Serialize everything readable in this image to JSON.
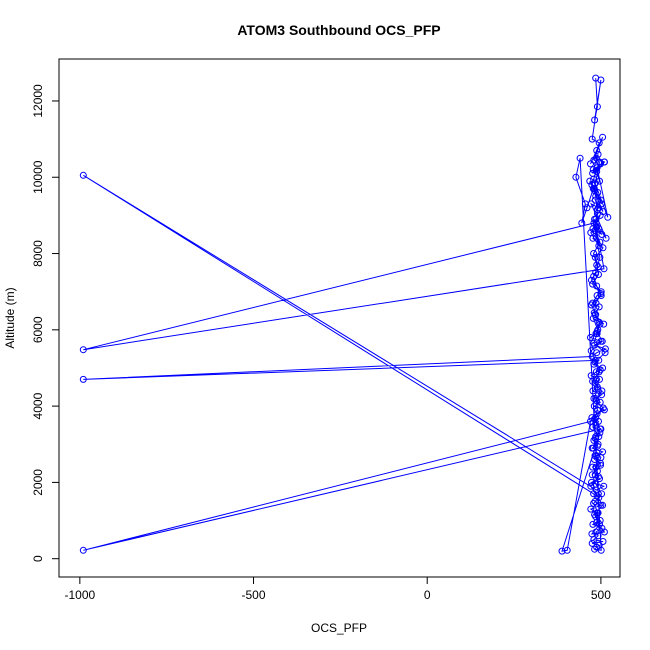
{
  "chart_data": {
    "type": "scatter",
    "title": "ATOM3 Southbound OCS_PFP",
    "xlabel": "OCS_PFP",
    "ylabel": "Altitude (m)",
    "xlim": [
      -1060,
      555
    ],
    "ylim": [
      -480,
      13100
    ],
    "xticks": [
      -1000,
      -500,
      0,
      500
    ],
    "yticks": [
      0,
      2000,
      4000,
      6000,
      8000,
      10000,
      12000
    ],
    "color": "#0000ff",
    "grid": false,
    "legend": "none",
    "series": [
      {
        "x": [
          485,
          490,
          482,
          500,
          475,
          495,
          488,
          470,
          505,
          480,
          492,
          478,
          510,
          487,
          476,
          499,
          483,
          520,
          489,
          474,
          502,
          481,
          496,
          479,
          491,
          468,
          506,
          484,
          493,
          472,
          515,
          486,
          498,
          477,
          503,
          488,
          471,
          494,
          482,
          509,
          -990,
          480,
          497,
          485,
          473,
          501,
          489,
          476,
          495,
          483,
          508,
          478,
          491,
          486,
          470,
          500,
          482,
          513,
          488,
          475,
          -990,
          494,
          480,
          505,
          487,
          472,
          496,
          484,
          490,
          477,
          502,
          485,
          498,
          481,
          510,
          489,
          474,
          493,
          486,
          500,
          -990,
          470,
          403,
          388,
          497,
          485,
          480,
          492,
          475,
          505,
          488,
          482,
          499,
          476,
          490,
          484,
          496,
          473,
          508,
          487,
          -990,
          479,
          494,
          483,
          500,
          471,
          489,
          485,
          498,
          477,
          503,
          486,
          492,
          480,
          506,
          475,
          495,
          488,
          482,
          501,
          440,
          428,
          455,
          445,
          460,
          478,
          485,
          490,
          483,
          497,
          479,
          488,
          493,
          476,
          500,
          486,
          481,
          495,
          489,
          504,
          472,
          484,
          498,
          487,
          491,
          480,
          507,
          485,
          477,
          494,
          490,
          483,
          499,
          475,
          486,
          502,
          479,
          492,
          488,
          510,
          474,
          496,
          482,
          505,
          489,
          471,
          493,
          486,
          500,
          478,
          484,
          498,
          481,
          490,
          487,
          503,
          476,
          495,
          483,
          512,
          480,
          489,
          497,
          485,
          473,
          501,
          488,
          479,
          492,
          484,
          506,
          477,
          494,
          486,
          490,
          500,
          482,
          496,
          488,
          510
        ],
        "y": [
          12600,
          11850,
          11500,
          12550,
          11000,
          10900,
          10700,
          10350,
          11050,
          10450,
          10600,
          10200,
          10400,
          10500,
          10100,
          10350,
          9850,
          8950,
          10250,
          9800,
          9300,
          9700,
          10400,
          9950,
          9600,
          9900,
          9100,
          9400,
          9200,
          9300,
          8400,
          8800,
          9000,
          8650,
          8500,
          8700,
          8550,
          8200,
          8900,
          7600,
          5480,
          8800,
          7900,
          7500,
          7300,
          7000,
          6900,
          6700,
          6600,
          6400,
          6150,
          6300,
          6000,
          5900,
          5800,
          5700,
          5600,
          5500,
          5400,
          5300,
          4700,
          5200,
          5100,
          5000,
          4900,
          4800,
          4700,
          4600,
          4500,
          4400,
          4300,
          4200,
          4100,
          4000,
          3900,
          3800,
          3700,
          3600,
          3500,
          3400,
          220,
          3600,
          220,
          200,
          3300,
          3200,
          3100,
          3000,
          2900,
          2800,
          2700,
          2600,
          2500,
          2400,
          2300,
          2200,
          2100,
          2000,
          1900,
          1800,
          10050,
          1700,
          1600,
          1500,
          1400,
          1300,
          1200,
          1100,
          1000,
          900,
          800,
          700,
          600,
          500,
          450,
          400,
          350,
          300,
          250,
          220,
          10500,
          10000,
          9300,
          8800,
          9200,
          9700,
          9500,
          9050,
          8600,
          8300,
          8000,
          7700,
          7450,
          7200,
          6950,
          6700,
          6450,
          6200,
          5950,
          5700,
          5450,
          5200,
          4950,
          4700,
          4450,
          4200,
          3950,
          3700,
          3450,
          3200,
          2950,
          2700,
          2450,
          2200,
          1950,
          1700,
          1450,
          1200,
          950,
          700,
          650,
          900,
          1150,
          1400,
          1650,
          1900,
          2150,
          2400,
          2650,
          2900,
          3150,
          3400,
          3650,
          3900,
          4150,
          4400,
          4650,
          4900,
          5150,
          5400,
          5650,
          5900,
          6150,
          6400,
          6650,
          6900,
          7150,
          7400,
          7650,
          7900,
          8150,
          8400,
          8650,
          8900,
          9150,
          9400,
          9650,
          9900,
          10150,
          10400
        ]
      }
    ]
  }
}
